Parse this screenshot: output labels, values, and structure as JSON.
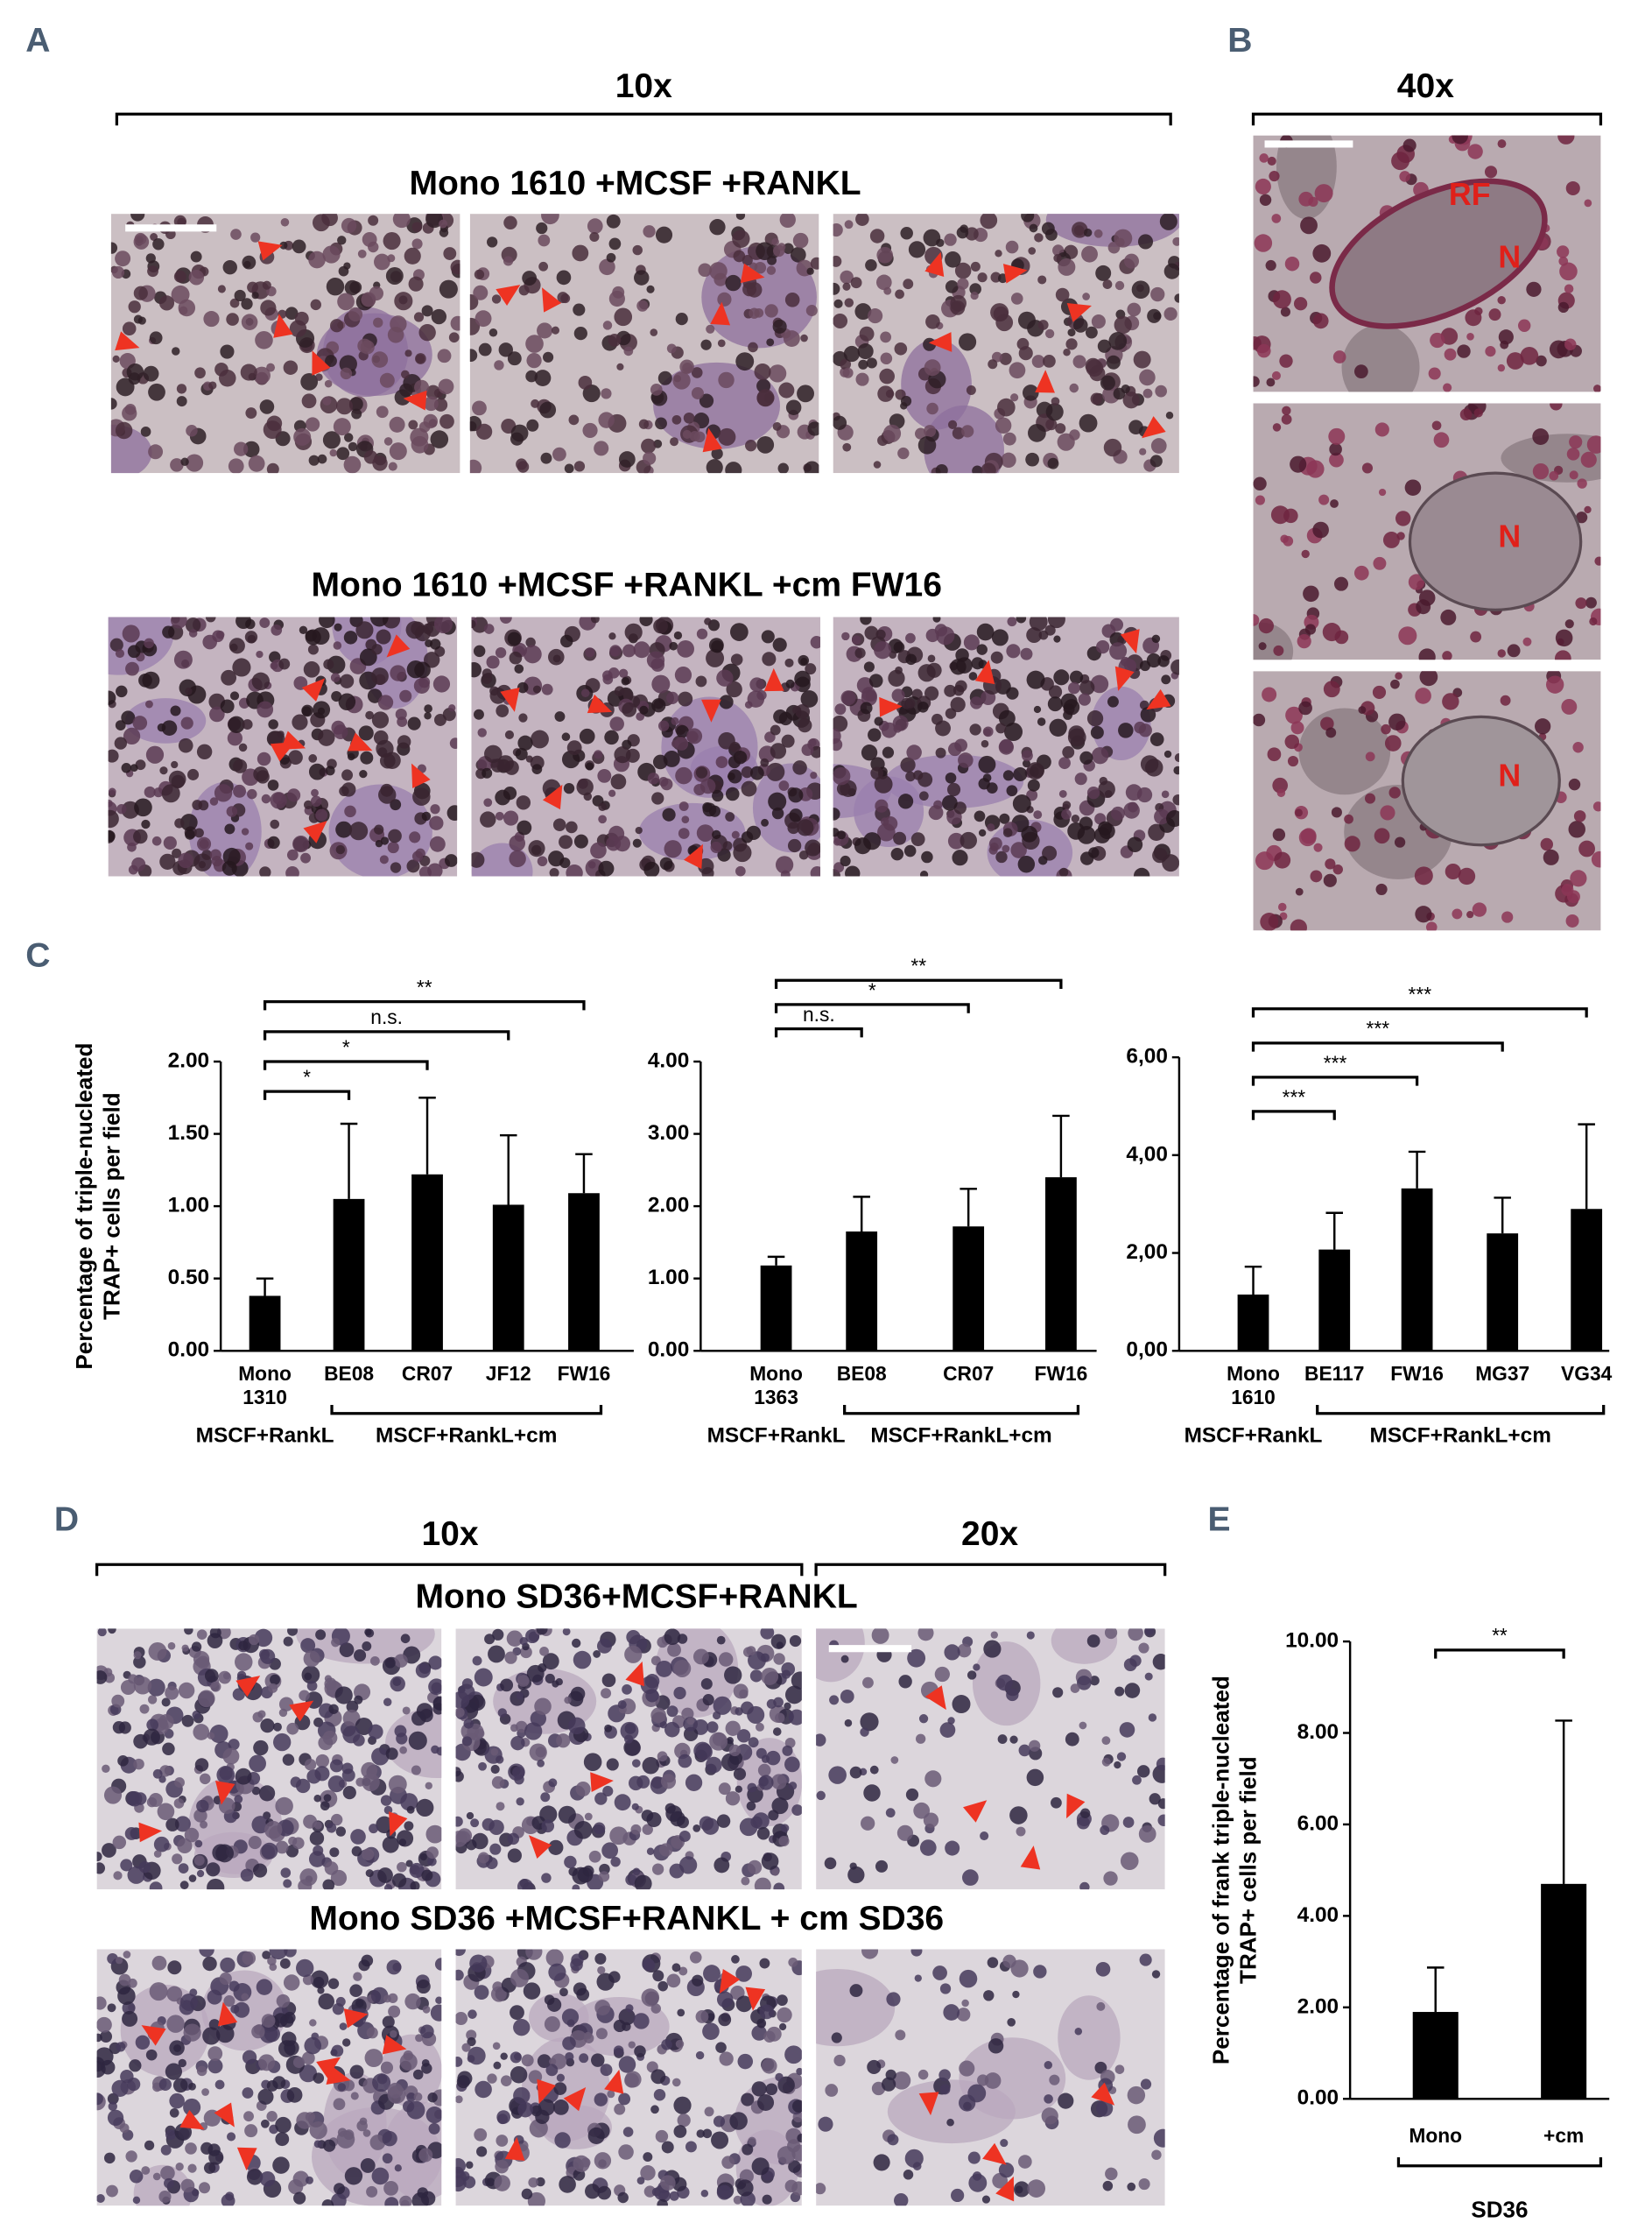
{
  "figure": {
    "panel_labels": [
      "A",
      "B",
      "C",
      "D",
      "E"
    ],
    "a": {
      "magnification": "10x",
      "row_titles": [
        "Mono 1610 +MCSF +RANKL",
        "Mono 1610 +MCSF +RANKL +cm FW16"
      ]
    },
    "b": {
      "magnification": "40x",
      "annotations": [
        "RF",
        "N",
        "N",
        "N"
      ]
    },
    "d": {
      "magnifications": [
        "10x",
        "20x"
      ],
      "row_titles": [
        "Mono SD36+MCSF+RANKL",
        "Mono SD36 +MCSF+RANKL + cm SD36"
      ]
    }
  },
  "chart_data": [
    {
      "type": "bar",
      "ylabel": "Percentage of triple-nucleated TRAP+ cells per field",
      "categories": [
        "Mono 1310",
        "BE08",
        "CR07",
        "JF12",
        "FW16"
      ],
      "values": [
        0.38,
        1.05,
        1.22,
        1.01,
        1.09
      ],
      "errors": [
        0.12,
        0.52,
        0.53,
        0.48,
        0.27
      ],
      "color": "#000000",
      "ylim": [
        0,
        2
      ],
      "yticks": [
        {
          "value": 0,
          "label": "0.00"
        },
        {
          "value": 0.5,
          "label": "0.50"
        },
        {
          "value": 1,
          "label": "1.00"
        },
        {
          "value": 1.5,
          "label": "1.50"
        },
        {
          "value": 2,
          "label": "2.00"
        }
      ],
      "groups": [
        "MSCF+RankL",
        "MSCF+RankL+cm"
      ],
      "significance": [
        {
          "label": "*",
          "to": "BE08"
        },
        {
          "label": "*",
          "to": "CR07"
        },
        {
          "label": "n.s.",
          "to": "JF12"
        },
        {
          "label": "**",
          "to": "FW16"
        }
      ]
    },
    {
      "type": "bar",
      "categories": [
        "Mono 1363",
        "BE08",
        "CR07",
        "FW16"
      ],
      "values": [
        1.18,
        1.65,
        1.72,
        2.4
      ],
      "errors": [
        0.12,
        0.48,
        0.52,
        0.85
      ],
      "color": "#000000",
      "ylim": [
        0,
        4
      ],
      "yticks": [
        {
          "value": 0,
          "label": "0.00"
        },
        {
          "value": 1,
          "label": "1.00"
        },
        {
          "value": 2,
          "label": "2.00"
        },
        {
          "value": 3,
          "label": "3.00"
        },
        {
          "value": 4,
          "label": "4.00"
        }
      ],
      "groups": [
        "MSCF+RankL",
        "MSCF+RankL+cm"
      ],
      "significance": [
        {
          "label": "n.s.",
          "to": "BE08"
        },
        {
          "label": "*",
          "to": "CR07"
        },
        {
          "label": "**",
          "to": "FW16"
        }
      ]
    },
    {
      "type": "bar",
      "categories": [
        "Mono 1610",
        "BE117",
        "FW16",
        "MG37",
        "VG34"
      ],
      "values": [
        1.15,
        2.07,
        3.32,
        2.4,
        2.9
      ],
      "errors": [
        0.57,
        0.75,
        0.75,
        0.73,
        1.73
      ],
      "color": "#000000",
      "ylim": [
        0,
        6
      ],
      "yticks": [
        {
          "value": 0,
          "label": "0,00"
        },
        {
          "value": 2,
          "label": "2,00"
        },
        {
          "value": 4,
          "label": "4,00"
        },
        {
          "value": 6,
          "label": "6,00"
        }
      ],
      "groups": [
        "MSCF+RankL",
        "MSCF+RankL+cm"
      ],
      "significance": [
        {
          "label": "***",
          "to": "BE117"
        },
        {
          "label": "***",
          "to": "FW16"
        },
        {
          "label": "***",
          "to": "MG37"
        },
        {
          "label": "***",
          "to": "VG34"
        }
      ]
    },
    {
      "type": "bar",
      "ylabel": "Percentage of frank triple-nucleated TRAP+ cells per field",
      "categories": [
        "Mono",
        "+cm"
      ],
      "values": [
        1.9,
        4.7
      ],
      "errors": [
        0.97,
        3.57
      ],
      "color": "#000000",
      "ylim": [
        0,
        10
      ],
      "yticks": [
        {
          "value": 0,
          "label": "0.00"
        },
        {
          "value": 2,
          "label": "2.00"
        },
        {
          "value": 4,
          "label": "4.00"
        },
        {
          "value": 6,
          "label": "6.00"
        },
        {
          "value": 8,
          "label": "8.00"
        },
        {
          "value": 10,
          "label": "10.00"
        }
      ],
      "groups": [
        "SD36"
      ],
      "significance": [
        {
          "label": "**",
          "to": "+cm"
        }
      ]
    }
  ]
}
